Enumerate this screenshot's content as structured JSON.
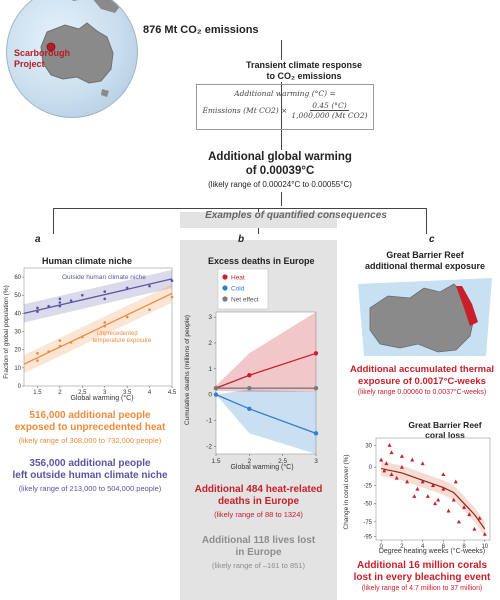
{
  "top": {
    "emissions": "876 Mt CO₂ emissions",
    "project_label_line1": "Scarborough",
    "project_label_line2": "Project",
    "tcr_line1": "Transient climate response",
    "tcr_line2": "to CO₂ emissions",
    "formula_line1": "Additional warming (°C) =",
    "formula_left": "Emissions (Mt CO2) ×",
    "formula_num": "0.45 (°C)",
    "formula_den": "1,000,000 (Mt CO2)",
    "warming_line1": "Additional global warming",
    "warming_line2": "of 0.00039°C",
    "warming_range": "(likely range of 0.00024°C to 0.00055°C)",
    "examples": "Examples of quantified consequences"
  },
  "panel_a": {
    "letter": "a",
    "title": "Human climate niche",
    "ylabel": "Fraction of global population (%)",
    "xlabel": "Global warming (°C)",
    "legend_outside": "Outside human climate niche",
    "legend_unprec_line1": "Unprecedented",
    "legend_unprec_line2": "temperature exposure",
    "yticks": [
      "0",
      "10",
      "20",
      "30",
      "40",
      "50",
      "60"
    ],
    "xticks": [
      "1.5",
      "2",
      "2.5",
      "3",
      "3.5",
      "4",
      "4.5"
    ],
    "stat1_line1": "516,000 additional people",
    "stat1_line2": "exposed to unprecedented heat",
    "stat1_range": "(likely range of 308,000 to 732,000 people)",
    "stat2_line1": "356,000 additional people",
    "stat2_line2": "left outside human climate niche",
    "stat2_range": "(likely range of 213,000 to 504,000 people)"
  },
  "panel_b": {
    "letter": "b",
    "title": "Excess deaths in Europe",
    "ylabel": "Cumulative deaths (millions of people)",
    "xlabel": "Global warming (°C)",
    "legend": [
      "Heat",
      "Cold",
      "Net effect"
    ],
    "yticks": [
      "3",
      "2",
      "1",
      "0",
      "-1",
      "-2"
    ],
    "xticks": [
      "1.5",
      "2",
      "2.5",
      "3"
    ],
    "stat1_line1": "Additional 484 heat-related",
    "stat1_line2": "deaths in Europe",
    "stat1_range": "(likely range of 88 to 1324)",
    "stat2_line1": "Additional 118 lives lost",
    "stat2_line2": "in Europe",
    "stat2_range": "(likely range of –161 to 851)"
  },
  "panel_c": {
    "letter": "c",
    "title_line1": "Great Barrier Reef",
    "title_line2": "additional thermal exposure",
    "stat1_line1": "Additional accumulated thermal",
    "stat1_line2": "exposure of 0.0017°C-weeks",
    "stat1_range": "(likely range 0.00060 to 0.0037°C-weeks)",
    "chart_title_line1": "Great Barrier Reef",
    "chart_title_line2": "coral loss",
    "ylabel": "Change in coral cover (%)",
    "xlabel": "Degree heating weeks (°C-weeks)",
    "yticks": [
      "30",
      "0",
      "-25",
      "-50",
      "-75",
      "-95"
    ],
    "xticks": [
      "0",
      "2",
      "4",
      "6",
      "8",
      "10"
    ],
    "stat2_line1": "Additional 16 million corals",
    "stat2_line2": "lost in every bleaching event",
    "stat2_range": "(likely range of 4.7 million to 37 million)"
  },
  "colors": {
    "orange": "#ef8a3a",
    "purple": "#5a55a2",
    "red": "#c8202a",
    "blue": "#2f7fd1",
    "grey": "#8d8d8d"
  },
  "chart_data": [
    {
      "type": "scatter",
      "title": "Human climate niche",
      "xlabel": "Global warming (°C)",
      "ylabel": "Fraction of global population (%)",
      "xlim": [
        1.2,
        4.5
      ],
      "ylim": [
        0,
        65
      ],
      "series": [
        {
          "name": "Outside human climate niche",
          "x": [
            1.5,
            1.5,
            1.75,
            2.0,
            2.0,
            2.0,
            2.25,
            2.5,
            3.0,
            3.0,
            3.5,
            4.0,
            4.5
          ],
          "y": [
            41,
            43,
            44,
            46,
            48,
            44,
            47,
            50,
            52,
            48,
            54,
            55,
            58
          ],
          "fit": [
            [
              1.2,
              40
            ],
            [
              4.5,
              59
            ]
          ]
        },
        {
          "name": "Unprecedented temperature exposure",
          "x": [
            1.5,
            1.5,
            1.75,
            2.0,
            2.0,
            2.25,
            2.5,
            3.0,
            3.0,
            3.5,
            4.0,
            4.5
          ],
          "y": [
            14,
            18,
            19,
            22,
            25,
            24,
            27,
            33,
            35,
            38,
            42,
            49
          ],
          "fit": [
            [
              1.2,
              12
            ],
            [
              4.5,
              51
            ]
          ]
        }
      ]
    },
    {
      "type": "line",
      "title": "Excess deaths in Europe",
      "xlabel": "Global warming (°C)",
      "ylabel": "Cumulative deaths (millions of people)",
      "ylim": [
        -2.3,
        3.2
      ],
      "series": [
        {
          "name": "Heat",
          "x": [
            1.5,
            2,
            3
          ],
          "y": [
            0.25,
            0.75,
            1.6
          ],
          "band_hi": [
            0.35,
            1.6,
            3.2
          ],
          "band_lo": [
            0.15,
            0.1,
            0.1
          ]
        },
        {
          "name": "Cold",
          "x": [
            1.5,
            2,
            3
          ],
          "y": [
            0,
            -0.55,
            -1.5
          ],
          "band_hi": [
            0,
            0.2,
            0.1
          ],
          "band_lo": [
            0,
            -1.5,
            -2.3
          ]
        },
        {
          "name": "Net effect",
          "x": [
            1.5,
            2,
            3
          ],
          "y": [
            0.25,
            0.25,
            0.25
          ]
        }
      ]
    },
    {
      "type": "scatter",
      "title": "Great Barrier Reef coral loss",
      "xlabel": "Degree heating weeks (°C-weeks)",
      "ylabel": "Change in coral cover (%)",
      "xlim": [
        -0.5,
        10.5
      ],
      "ylim": [
        -100,
        40
      ],
      "x": [
        0,
        0.3,
        0.5,
        1,
        1,
        1.5,
        2,
        2,
        2.5,
        3,
        3.5,
        4,
        4,
        4.5,
        5,
        5.5,
        6,
        6,
        6.5,
        7,
        7.5,
        8,
        8.5,
        9,
        9.5,
        10,
        0.8,
        3.2,
        5.2,
        7.2
      ],
      "y": [
        10,
        -5,
        5,
        -10,
        20,
        -15,
        0,
        15,
        -20,
        10,
        -30,
        -20,
        5,
        -40,
        -25,
        -45,
        -30,
        -10,
        -60,
        -45,
        -75,
        -55,
        -65,
        -85,
        -70,
        -92,
        30,
        -40,
        -50,
        -20
      ],
      "fit": [
        [
          0,
          -2
        ],
        [
          2,
          -8
        ],
        [
          4,
          -18
        ],
        [
          6,
          -28
        ],
        [
          7,
          -35
        ],
        [
          8,
          -50
        ],
        [
          9,
          -65
        ],
        [
          10,
          -85
        ]
      ]
    }
  ]
}
